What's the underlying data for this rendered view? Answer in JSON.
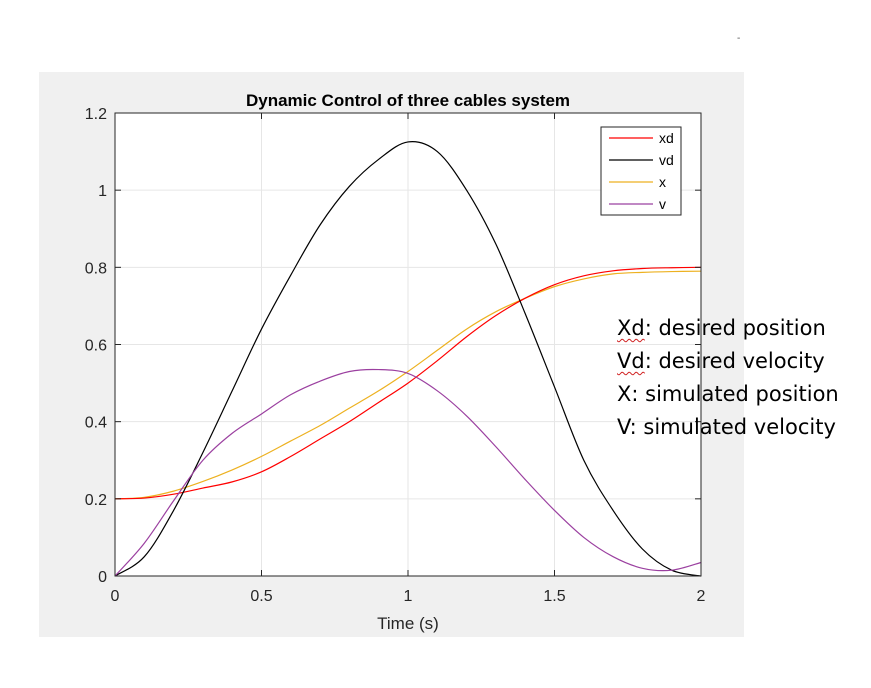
{
  "corner_mark": "-",
  "annotations": {
    "lines": [
      {
        "abbr": "Xd",
        "rest": ": desired position"
      },
      {
        "abbr": "Vd",
        "rest": ": desired velocity"
      },
      {
        "abbr": "X",
        "rest": ": simulated position"
      },
      {
        "abbr": "V",
        "rest": ": simulated velocity"
      }
    ]
  },
  "chart_data": {
    "type": "line",
    "title": "Dynamic Control of three cables system",
    "xlabel": "Time (s)",
    "ylabel": "",
    "xlim": [
      0,
      2
    ],
    "ylim": [
      0,
      1.2
    ],
    "xticks": [
      0,
      0.5,
      1,
      1.5,
      2
    ],
    "xtick_labels": [
      "0",
      "0.5",
      "1",
      "1.5",
      "2"
    ],
    "yticks": [
      0,
      0.2,
      0.4,
      0.6,
      0.8,
      1.0,
      1.2
    ],
    "ytick_labels": [
      "0",
      "0.2",
      "0.4",
      "0.6",
      "0.8",
      "1",
      "1.2"
    ],
    "grid": true,
    "legend_position": "top-right",
    "x": [
      0,
      0.1,
      0.2,
      0.3,
      0.4,
      0.5,
      0.6,
      0.7,
      0.8,
      0.9,
      1.0,
      1.1,
      1.2,
      1.3,
      1.4,
      1.5,
      1.6,
      1.7,
      1.8,
      1.9,
      2.0
    ],
    "series": [
      {
        "name": "xd",
        "color": "#ff0000",
        "values": [
          0.2,
          0.202,
          0.212,
          0.228,
          0.244,
          0.27,
          0.31,
          0.355,
          0.4,
          0.45,
          0.5,
          0.558,
          0.62,
          0.675,
          0.72,
          0.755,
          0.778,
          0.791,
          0.797,
          0.799,
          0.8
        ]
      },
      {
        "name": "vd",
        "color": "#000000",
        "values": [
          0.0,
          0.05,
          0.17,
          0.32,
          0.48,
          0.64,
          0.78,
          0.91,
          1.01,
          1.08,
          1.125,
          1.1,
          1.0,
          0.86,
          0.68,
          0.49,
          0.3,
          0.17,
          0.07,
          0.015,
          0.0
        ]
      },
      {
        "name": "x",
        "color": "#edb120",
        "values": [
          0.2,
          0.204,
          0.22,
          0.245,
          0.275,
          0.31,
          0.35,
          0.39,
          0.435,
          0.48,
          0.53,
          0.585,
          0.64,
          0.685,
          0.72,
          0.75,
          0.77,
          0.783,
          0.787,
          0.789,
          0.79
        ]
      },
      {
        "name": "v",
        "color": "#9b40a0",
        "values": [
          0.0,
          0.085,
          0.195,
          0.3,
          0.37,
          0.42,
          0.47,
          0.505,
          0.53,
          0.535,
          0.525,
          0.48,
          0.415,
          0.335,
          0.25,
          0.17,
          0.1,
          0.05,
          0.02,
          0.015,
          0.035
        ]
      }
    ]
  }
}
